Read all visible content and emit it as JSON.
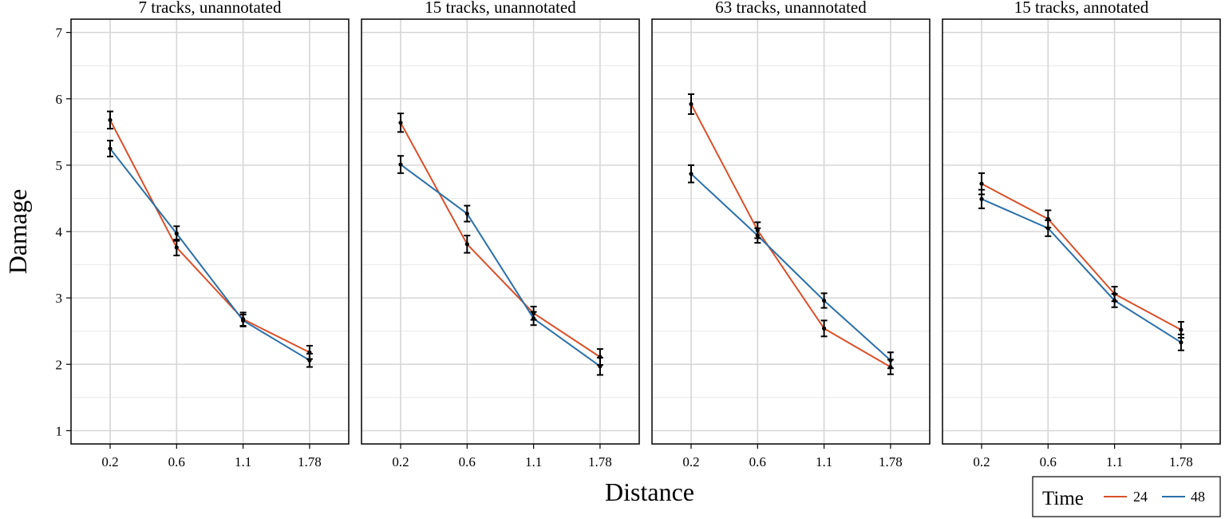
{
  "chart_data": {
    "type": "line",
    "xlabel": "Distance",
    "ylabel": "Damage",
    "x_categories": [
      "0.2",
      "0.6",
      "1.1",
      "1.78"
    ],
    "ylim": [
      0.8,
      7.2
    ],
    "y_ticks": [
      1,
      2,
      3,
      4,
      5,
      6,
      7
    ],
    "grid": true,
    "legend": {
      "title": "Time",
      "placement": "bottom-right",
      "entries": [
        {
          "label": "24",
          "color": "#d9502a"
        },
        {
          "label": "48",
          "color": "#2a6fa8"
        }
      ]
    },
    "panels": [
      {
        "title": "7 tracks, unannotated",
        "series": [
          {
            "name": "24",
            "values": [
              5.68,
              3.76,
              2.68,
              2.18
            ],
            "err": [
              0.13,
              0.12,
              0.1,
              0.1
            ]
          },
          {
            "name": "48",
            "values": [
              5.25,
              3.97,
              2.66,
              2.06
            ],
            "err": [
              0.12,
              0.11,
              0.09,
              0.1
            ]
          }
        ]
      },
      {
        "title": "15 tracks, unannotated",
        "series": [
          {
            "name": "24",
            "values": [
              5.64,
              3.81,
              2.77,
              2.11
            ],
            "err": [
              0.14,
              0.13,
              0.1,
              0.12
            ]
          },
          {
            "name": "48",
            "values": [
              5.01,
              4.27,
              2.69,
              1.97
            ],
            "err": [
              0.13,
              0.12,
              0.1,
              0.13
            ]
          }
        ]
      },
      {
        "title": "63 tracks, unannotated",
        "series": [
          {
            "name": "24",
            "values": [
              5.92,
              4.02,
              2.54,
              1.96
            ],
            "err": [
              0.15,
              0.12,
              0.12,
              0.11
            ]
          },
          {
            "name": "48",
            "values": [
              4.87,
              3.94,
              2.96,
              2.06
            ],
            "err": [
              0.13,
              0.11,
              0.11,
              0.12
            ]
          }
        ]
      },
      {
        "title": "15 tracks, annotated",
        "series": [
          {
            "name": "24",
            "values": [
              4.72,
              4.19,
              3.06,
              2.52
            ],
            "err": [
              0.16,
              0.13,
              0.11,
              0.12
            ]
          },
          {
            "name": "48",
            "values": [
              4.49,
              4.05,
              2.96,
              2.33
            ],
            "err": [
              0.14,
              0.12,
              0.1,
              0.12
            ]
          }
        ]
      }
    ]
  }
}
